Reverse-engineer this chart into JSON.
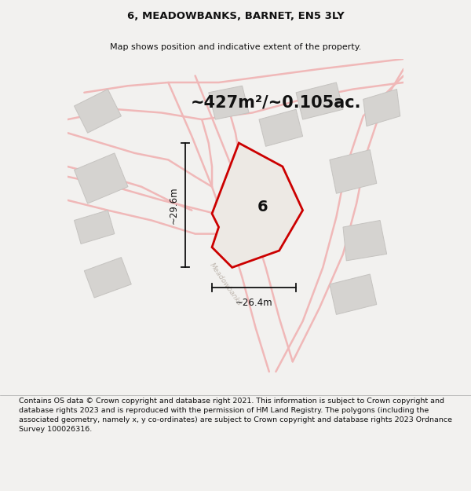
{
  "title_line1": "6, MEADOWBANKS, BARNET, EN5 3LY",
  "title_line2": "Map shows position and indicative extent of the property.",
  "area_label": "~427m²/~0.105ac.",
  "width_label": "~26.4m",
  "height_label": "~29.6m",
  "number_label": "6",
  "street_label": "Meadowbanks",
  "footer_text": "Contains OS data © Crown copyright and database right 2021. This information is subject to Crown copyright and database rights 2023 and is reproduced with the permission of HM Land Registry. The polygons (including the associated geometry, namely x, y co-ordinates) are subject to Crown copyright and database rights 2023 Ordnance Survey 100026316.",
  "bg_color": "#f2f1ef",
  "map_bg_color": "#f9f8f6",
  "road_color": "#f0b8b8",
  "road_fill_color": "#ffffff",
  "building_color": "#d5d3d0",
  "building_edge_color": "#c5c3c0",
  "main_polygon_color": "#cc0000",
  "main_polygon_fill": "#ede9e4",
  "dim_line_color": "#111111",
  "title_fontsize": 9.5,
  "subtitle_fontsize": 8.0,
  "area_fontsize": 19,
  "footer_fontsize": 6.8,
  "map_xlim": [
    0,
    100
  ],
  "map_ylim": [
    0,
    100
  ]
}
